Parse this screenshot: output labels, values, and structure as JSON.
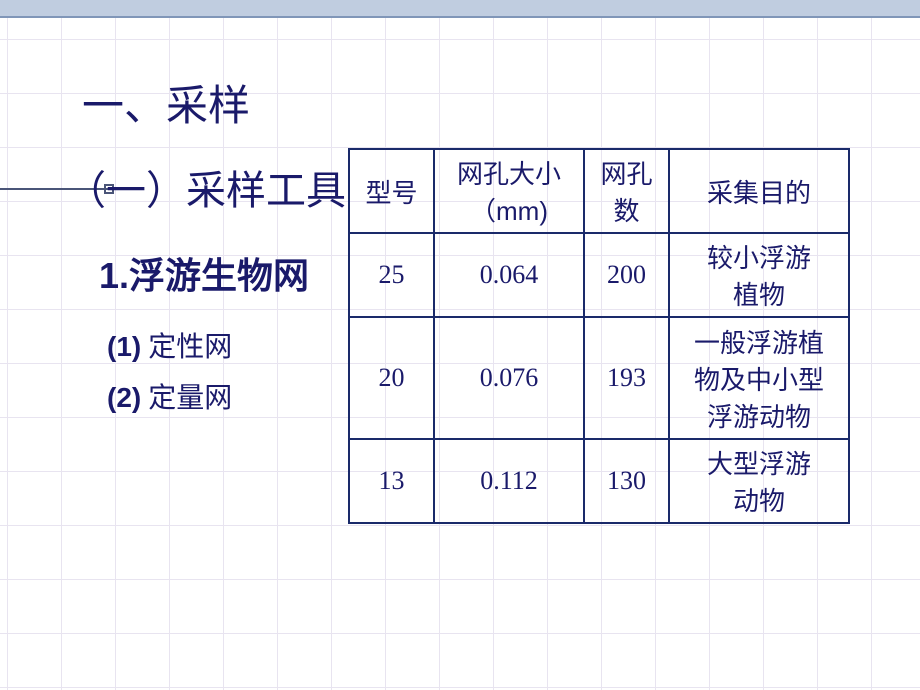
{
  "slide": {
    "title_main": "一、采样",
    "section_tools": "（一）采样工具",
    "item_net": {
      "num": "1.",
      "label": "浮游生物网"
    },
    "sub_qualitative": {
      "paren": "(1)",
      "label": " 定性网"
    },
    "sub_quantitative": {
      "paren": "(2)",
      "label": " 定量网"
    }
  },
  "table": {
    "type": "table",
    "border_color": "#1a2a6a",
    "text_color": "#1a1a6a",
    "columns": [
      {
        "label": "型号",
        "width": 85
      },
      {
        "label_l1": "网孔大小",
        "label_l2": "（mm)",
        "width": 150
      },
      {
        "label_l1": "网孔",
        "label_l2": "数",
        "width": 85
      },
      {
        "label": "采集目的",
        "width": 180
      }
    ],
    "rows": [
      {
        "model": "25",
        "mesh_size": "0.064",
        "mesh_count": "200",
        "purpose_l1": "较小浮游",
        "purpose_l2": "植物"
      },
      {
        "model": "20",
        "mesh_size": "0.076",
        "mesh_count": "193",
        "purpose_l1": "一般浮游植",
        "purpose_l2": "物及中小型",
        "purpose_l3": "浮游动物"
      },
      {
        "model": "13",
        "mesh_size": "0.112",
        "mesh_count": "130",
        "purpose_l1": "大型浮游",
        "purpose_l2": "动物"
      }
    ]
  },
  "style": {
    "background": "#ffffff",
    "grid_color": "#e8e4f0",
    "grid_size": 54,
    "top_bar_color": "#c0cde0",
    "accent_color": "#1a1a6a",
    "decor_color": "#4a5578"
  }
}
